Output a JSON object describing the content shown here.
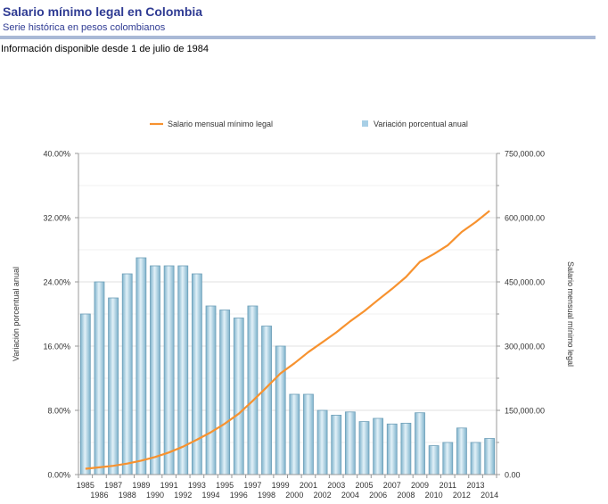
{
  "header": {
    "title": "Salario mínimo legal en Colombia",
    "subtitle": "Serie histórica en pesos colombianos",
    "info": "Información disponible desde 1 de julio de 1984"
  },
  "colors": {
    "title": "#2f3b93",
    "rule": "#a9b9d6",
    "line": "#f7922f",
    "bar_light": "#d2e8f2",
    "bar_dark": "#7fb3cc",
    "bar_stroke": "#6e9fb8",
    "grid": "#e6e6e6",
    "axis": "#999999",
    "legend_bar": "#a8cfe6"
  },
  "chart_data": {
    "type": "bar+line",
    "categories": [
      "1985",
      "1986",
      "1987",
      "1988",
      "1989",
      "1990",
      "1991",
      "1992",
      "1993",
      "1994",
      "1995",
      "1996",
      "1997",
      "1998",
      "1999",
      "2000",
      "2001",
      "2002",
      "2003",
      "2004",
      "2005",
      "2006",
      "2007",
      "2008",
      "2009",
      "2010",
      "2011",
      "2012",
      "2013",
      "2014"
    ],
    "series": [
      {
        "name": "Variación porcentual anual",
        "type": "bar",
        "axis": "left",
        "values": [
          20.0,
          24.0,
          22.0,
          25.0,
          27.0,
          26.0,
          26.0,
          26.0,
          25.0,
          21.0,
          20.5,
          19.5,
          21.0,
          18.5,
          16.0,
          10.0,
          10.0,
          8.0,
          7.4,
          7.8,
          6.6,
          7.0,
          6.3,
          6.4,
          7.7,
          3.6,
          4.0,
          5.8,
          4.0,
          4.5
        ]
      },
      {
        "name": "Salario mensual mínimo legal",
        "type": "line",
        "axis": "right",
        "values": [
          13558,
          16811,
          20510,
          25637,
          32560,
          41025,
          51720,
          65190,
          81510,
          98700,
          118934,
          142125,
          172005,
          203826,
          236460,
          260100,
          286000,
          309000,
          332000,
          358000,
          381500,
          408000,
          433700,
          461500,
          496900,
          515000,
          535600,
          566700,
          589500,
          616000
        ]
      }
    ],
    "left_axis": {
      "label": "Variación porcentual anual",
      "min": 0,
      "max": 40,
      "ticks": [
        "0.00%",
        "8.00%",
        "16.00%",
        "24.00%",
        "32.00%",
        "40.00%"
      ]
    },
    "right_axis": {
      "label": "Salario mensual mínimo legal",
      "min": 0,
      "max": 750000,
      "ticks": [
        "0.00",
        "150,000.00",
        "300,000.00",
        "450,000.00",
        "600,000.00",
        "750,000.00"
      ]
    },
    "legend": [
      {
        "label": "Salario mensual mínimo legal",
        "kind": "line"
      },
      {
        "label": "Variación porcentual anual",
        "kind": "bar"
      }
    ],
    "legend_position": "top",
    "grid": true
  }
}
